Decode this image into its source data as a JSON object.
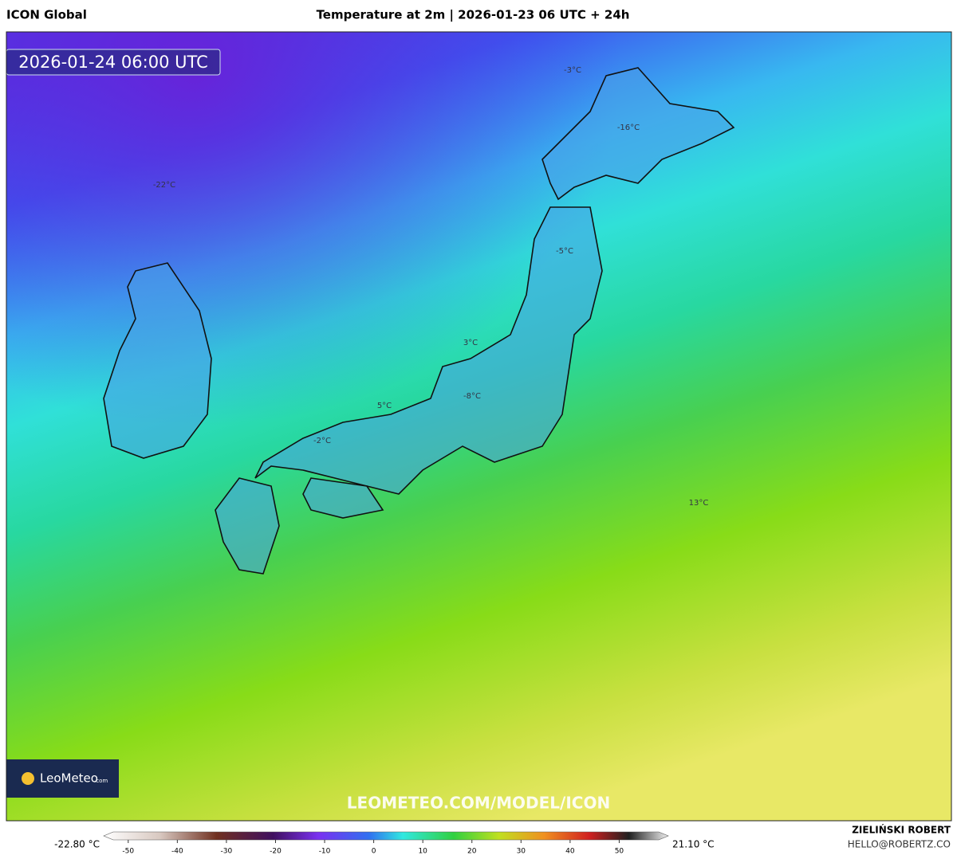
{
  "header": {
    "model": "ICON Global",
    "title": "Temperature at 2m | 2026-01-23 06 UTC + 24h"
  },
  "map": {
    "valid_time": "2026-01-24 06:00 UTC",
    "labels": [
      "-3°C",
      "-16°C",
      "-22°C",
      "-5°C",
      "3°C",
      "-8°C",
      "5°C",
      "-2°C",
      "13°C"
    ],
    "watermark": "LEOMETEO.COM/MODEL/ICON",
    "logo": {
      "brand": "LeoMeteo",
      "suffix": ".com"
    }
  },
  "legend": {
    "min_label": "-22.80 °C",
    "max_label": "21.10 °C",
    "range": [
      -55,
      60
    ],
    "ticks": [
      -50,
      -40,
      -30,
      -20,
      -10,
      0,
      10,
      20,
      30,
      40,
      50
    ]
  },
  "footer": {
    "author": "ZIELIŃSKI ROBERT",
    "email": "HELLO@ROBERTZ.CO"
  }
}
